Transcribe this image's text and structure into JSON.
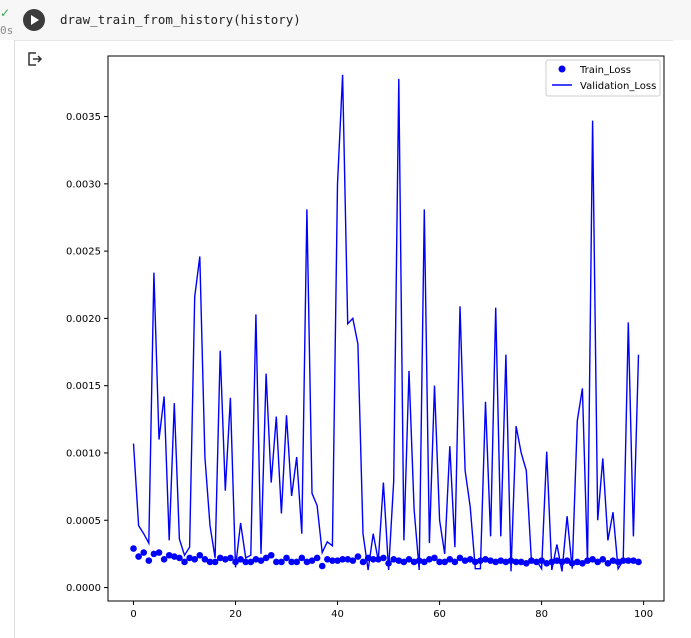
{
  "cell": {
    "code": "draw_train_from_history(history)",
    "status_check": "✓",
    "status_time": "0s"
  },
  "output_icon": "output-redirect-icon",
  "chart_data": {
    "type": "line",
    "x_ticks": [
      0,
      20,
      40,
      60,
      80,
      100
    ],
    "y_ticks": [
      "0.0000",
      "0.0005",
      "0.0010",
      "0.0015",
      "0.0020",
      "0.0025",
      "0.0030",
      "0.0035"
    ],
    "y_tick_values": [
      0,
      0.0005,
      0.001,
      0.0015,
      0.002,
      0.0025,
      0.003,
      0.0035
    ],
    "xlim": [
      -5,
      104
    ],
    "ylim": [
      -0.0001,
      0.00395
    ],
    "legend_position": "top-right",
    "grid": false,
    "colors": {
      "series": "#0000ff"
    },
    "series": [
      {
        "name": "Train_Loss",
        "style": "scatter",
        "x": [
          0,
          1,
          2,
          3,
          4,
          5,
          6,
          7,
          8,
          9,
          10,
          11,
          12,
          13,
          14,
          15,
          16,
          17,
          18,
          19,
          20,
          21,
          22,
          23,
          24,
          25,
          26,
          27,
          28,
          29,
          30,
          31,
          32,
          33,
          34,
          35,
          36,
          37,
          38,
          39,
          40,
          41,
          42,
          43,
          44,
          45,
          46,
          47,
          48,
          49,
          50,
          51,
          52,
          53,
          54,
          55,
          56,
          57,
          58,
          59,
          60,
          61,
          62,
          63,
          64,
          65,
          66,
          67,
          68,
          69,
          70,
          71,
          72,
          73,
          74,
          75,
          76,
          77,
          78,
          79,
          80,
          81,
          82,
          83,
          84,
          85,
          86,
          87,
          88,
          89,
          90,
          91,
          92,
          93,
          94,
          95,
          96,
          97,
          98,
          99
        ],
        "values": [
          0.00029,
          0.00023,
          0.00026,
          0.0002,
          0.00025,
          0.00026,
          0.00021,
          0.00024,
          0.00023,
          0.00022,
          0.00019,
          0.00022,
          0.00021,
          0.00024,
          0.00021,
          0.00019,
          0.00019,
          0.00022,
          0.00021,
          0.00022,
          0.00019,
          0.00021,
          0.00019,
          0.00019,
          0.00021,
          0.0002,
          0.00022,
          0.00024,
          0.00019,
          0.00019,
          0.00022,
          0.00019,
          0.00019,
          0.00022,
          0.00019,
          0.0002,
          0.00022,
          0.00016,
          0.00021,
          0.0002,
          0.0002,
          0.00021,
          0.00021,
          0.0002,
          0.00023,
          0.00019,
          0.00022,
          0.00021,
          0.00021,
          0.00022,
          0.00018,
          0.00021,
          0.0002,
          0.00019,
          0.00021,
          0.00019,
          0.0002,
          0.00019,
          0.00021,
          0.00022,
          0.00019,
          0.00019,
          0.00021,
          0.00019,
          0.00022,
          0.0002,
          0.00021,
          0.00019,
          0.0002,
          0.00021,
          0.0002,
          0.00019,
          0.0002,
          0.00019,
          0.0002,
          0.00019,
          0.00019,
          0.00018,
          0.0002,
          0.00019,
          0.0002,
          0.00018,
          0.00019,
          0.0002,
          0.00019,
          0.0002,
          0.00018,
          0.00019,
          0.00018,
          0.0002,
          0.00021,
          0.00019,
          0.00021,
          0.00018,
          0.0002,
          0.00019,
          0.0002,
          0.0002,
          0.0002,
          0.00019
        ]
      },
      {
        "name": "Validation_Loss",
        "style": "line",
        "x": [
          0,
          1,
          2,
          3,
          4,
          5,
          6,
          7,
          8,
          9,
          10,
          11,
          12,
          13,
          14,
          15,
          16,
          17,
          18,
          19,
          20,
          21,
          22,
          23,
          24,
          25,
          26,
          27,
          28,
          29,
          30,
          31,
          32,
          33,
          34,
          35,
          36,
          37,
          38,
          39,
          40,
          41,
          42,
          43,
          44,
          45,
          46,
          47,
          48,
          49,
          50,
          51,
          52,
          53,
          54,
          55,
          56,
          57,
          58,
          59,
          60,
          61,
          62,
          63,
          64,
          65,
          66,
          67,
          68,
          69,
          70,
          71,
          72,
          73,
          74,
          75,
          76,
          77,
          78,
          79,
          80,
          81,
          82,
          83,
          84,
          85,
          86,
          87,
          88,
          89,
          90,
          91,
          92,
          93,
          94,
          95,
          96,
          97,
          98,
          99
        ],
        "values": [
          0.00107,
          0.00046,
          0.0004,
          0.00033,
          0.00234,
          0.0011,
          0.00142,
          0.00035,
          0.00137,
          0.00036,
          0.00024,
          0.0003,
          0.00216,
          0.00246,
          0.00097,
          0.00046,
          0.00022,
          0.00176,
          0.00072,
          0.00141,
          0.00015,
          0.00048,
          0.00022,
          0.00024,
          0.00203,
          0.00025,
          0.00159,
          0.00078,
          0.00127,
          0.00055,
          0.00128,
          0.00068,
          0.00097,
          0.0004,
          0.00281,
          0.0007,
          0.00061,
          0.00026,
          0.00034,
          0.00031,
          0.003,
          0.00381,
          0.00196,
          0.002,
          0.00181,
          0.0004,
          0.00013,
          0.0004,
          0.0002,
          0.00078,
          0.00013,
          0.00079,
          0.00378,
          0.00035,
          0.00161,
          0.00058,
          0.00013,
          0.00281,
          0.00033,
          0.0015,
          0.0005,
          0.00025,
          0.00105,
          0.0003,
          0.00209,
          0.00087,
          0.0006,
          0.00014,
          0.00014,
          0.00138,
          0.00038,
          0.00208,
          0.00038,
          0.00173,
          0.00012,
          0.0012,
          0.001,
          0.00087,
          0.0002,
          0.0002,
          0.00014,
          0.00101,
          0.00013,
          0.00032,
          0.00012,
          0.00053,
          0.00014,
          0.00124,
          0.00148,
          0.00018,
          0.00347,
          0.0005,
          0.00096,
          0.00035,
          0.00056,
          0.00014,
          0.0002,
          0.00197,
          0.00038,
          0.00173
        ]
      }
    ]
  }
}
